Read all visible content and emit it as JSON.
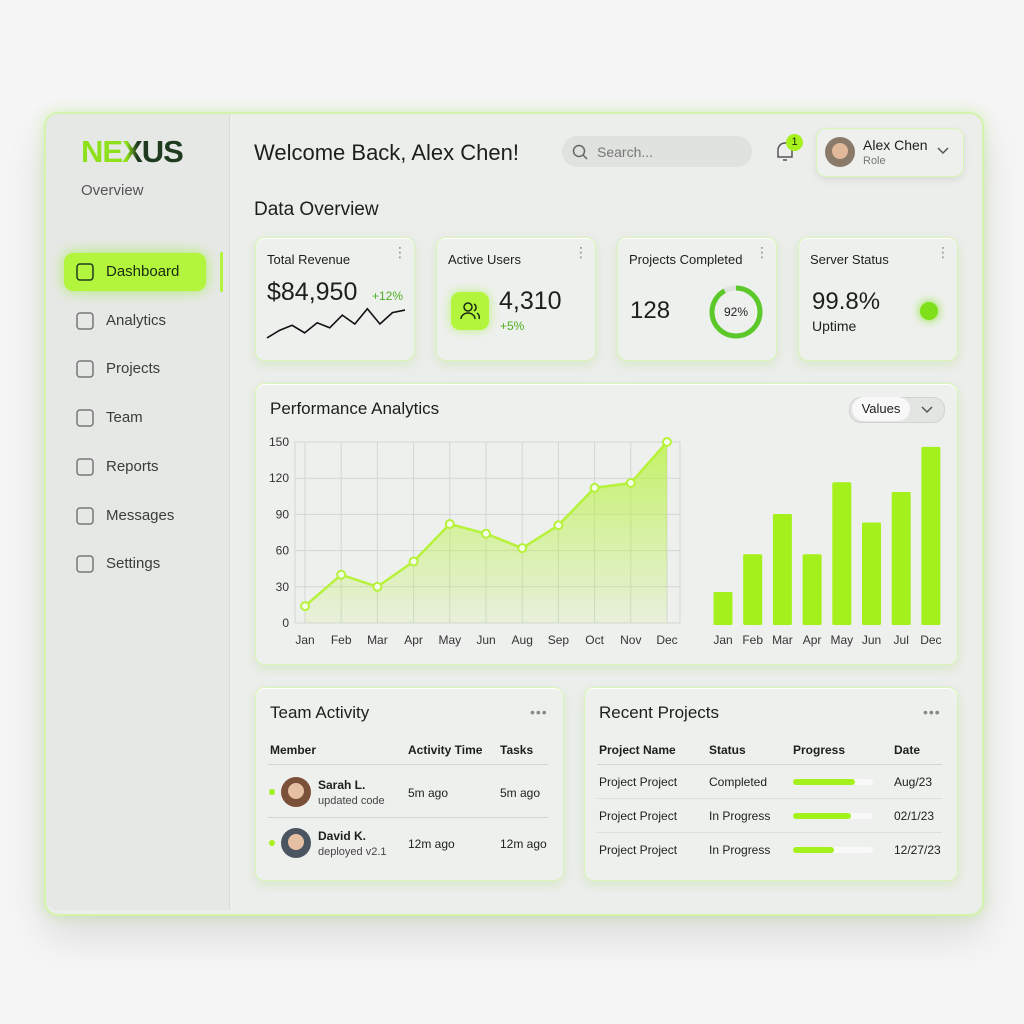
{
  "sidebar": {
    "brand": "NEXUS",
    "subtitle": "Overview",
    "nav": [
      {
        "label": "Dashboard",
        "active": true
      },
      {
        "label": "Analytics",
        "active": false
      },
      {
        "label": "Projects",
        "active": false
      },
      {
        "label": "Team",
        "active": false
      },
      {
        "label": "Reports",
        "active": false
      },
      {
        "label": "Messages",
        "active": false
      },
      {
        "label": "Settings",
        "active": false
      }
    ]
  },
  "header": {
    "title": "Welcome Back, Alex Chen!",
    "search_placeholder": "Search...",
    "notifications": 1,
    "user": {
      "name": "Alex Chen",
      "role": "Role"
    }
  },
  "overview": {
    "title": "Data Overview",
    "cards": [
      {
        "title": "Total Revenue",
        "value": "$84,950",
        "change": "+12%",
        "sparkline": {
          "values": [
            4,
            10,
            14,
            8,
            16,
            12,
            22,
            15,
            27,
            15,
            24,
            26
          ],
          "ylim": [
            0,
            30
          ],
          "color": "#111111"
        }
      },
      {
        "title": "Active Users",
        "value": "4,310",
        "change": "+5%"
      },
      {
        "title": "Projects Completed",
        "value": "128",
        "progress": {
          "value": 92,
          "label": "92%"
        },
        "range": [
          0,
          100
        ],
        "color": "#5cc82a"
      },
      {
        "title": "Server Status",
        "value": "99.8%",
        "caption": "Uptime",
        "status_color": "#7ee01a"
      }
    ]
  },
  "performance": {
    "title": "Performance Analytics",
    "selector": "Values",
    "line_chart": {
      "type": "area",
      "categories": [
        "Jan",
        "Feb",
        "Mar",
        "Apr",
        "May",
        "Jun",
        "Aug",
        "Sep",
        "Oct",
        "Nov",
        "Dec"
      ],
      "values": [
        14,
        40,
        30,
        51,
        82,
        74,
        62,
        81,
        112,
        116,
        150
      ],
      "color": "#b6f23a",
      "ylim": [
        0,
        150
      ],
      "yticks": [
        0,
        30,
        60,
        90,
        120,
        150
      ],
      "grid": true
    },
    "bar_chart": {
      "type": "bar",
      "categories": [
        "Jan",
        "Feb",
        "Mar",
        "Apr",
        "May",
        "Jun",
        "Jul",
        "Dec"
      ],
      "values": [
        27,
        58,
        91,
        58,
        117,
        84,
        109,
        146
      ],
      "color": "#a4f01c",
      "ylim": [
        0,
        150
      ]
    }
  },
  "team_activity": {
    "title": "Team Activity",
    "columns": [
      "Member",
      "Activity Time",
      "Tasks"
    ],
    "rows": [
      {
        "name": "Sarah L.",
        "action": "updated code",
        "time": "5m ago",
        "tasks": "5m ago"
      },
      {
        "name": "David K.",
        "action": "deployed v2.1",
        "time": "12m ago",
        "tasks": "12m ago"
      }
    ]
  },
  "recent_projects": {
    "title": "Recent Projects",
    "columns": [
      "Project Name",
      "Status",
      "Progress",
      "Date"
    ],
    "progress_range": [
      0,
      100
    ],
    "color": "#a4f01c",
    "rows": [
      {
        "name": "Project Project",
        "status": "Completed",
        "progress": 78,
        "date": "Aug/23"
      },
      {
        "name": "Project Project",
        "status": "In Progress",
        "progress": 72,
        "date": "02/1/23"
      },
      {
        "name": "Project Project",
        "status": "In Progress",
        "progress": 51,
        "date": "12/27/23"
      }
    ]
  }
}
